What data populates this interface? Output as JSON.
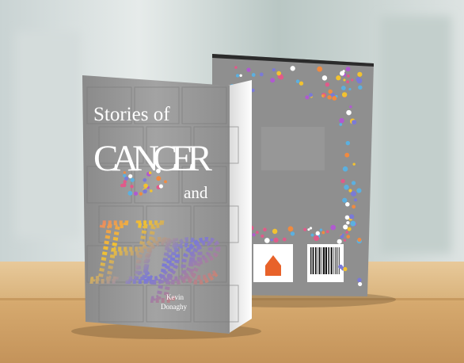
{
  "cover": {
    "title_line1": "Stories of",
    "title_line2": "CANCER",
    "title_line3": "and",
    "title_script": "Hope",
    "author_first": "Kevin",
    "author_last": "Donaghy"
  }
}
